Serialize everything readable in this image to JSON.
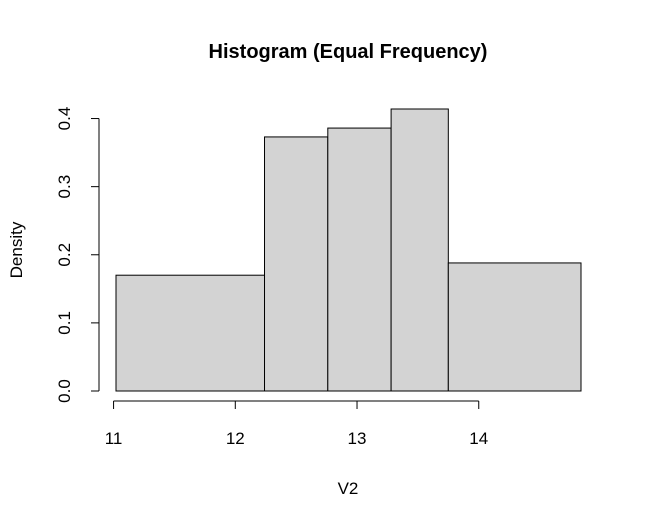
{
  "chart_data": {
    "type": "bar",
    "title": "Histogram (Equal Frequency)",
    "xlabel": "V2",
    "ylabel": "Density",
    "bins": [
      {
        "start": 11.02,
        "end": 12.24,
        "density": 0.17
      },
      {
        "start": 12.24,
        "end": 12.76,
        "density": 0.373
      },
      {
        "start": 12.76,
        "end": 13.28,
        "density": 0.386
      },
      {
        "start": 13.28,
        "end": 13.75,
        "density": 0.414
      },
      {
        "start": 13.75,
        "end": 14.84,
        "density": 0.188
      }
    ],
    "x_ticks": [
      "11",
      "12",
      "13",
      "14"
    ],
    "y_ticks": [
      "0.0",
      "0.1",
      "0.2",
      "0.3",
      "0.4"
    ],
    "xlim": [
      11.02,
      14.84
    ],
    "ylim": [
      0,
      0.414
    ],
    "grid": false,
    "legend": "none",
    "bar_fill": "#d3d3d3",
    "bar_stroke": "#000000"
  }
}
